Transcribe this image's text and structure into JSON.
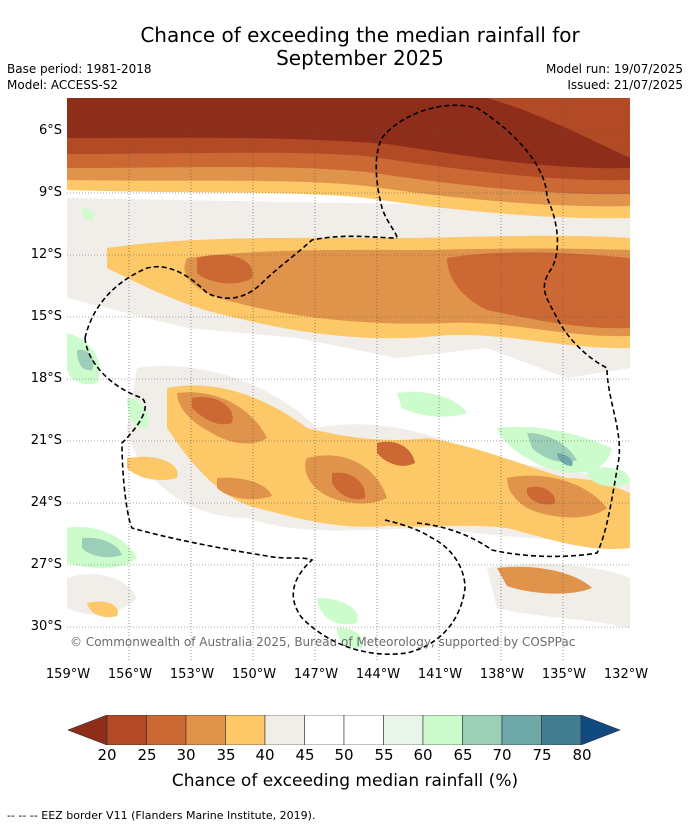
{
  "title_line1": "Chance of exceeding the median rainfall for",
  "title_line2": "September 2025",
  "base_period": "Base period: 1981-2018",
  "model": "Model: ACCESS-S2",
  "model_run": "Model run: 19/07/2025",
  "issued": "Issued: 21/07/2025",
  "lat_labels": [
    "6°S",
    "9°S",
    "12°S",
    "15°S",
    "18°S",
    "21°S",
    "24°S",
    "27°S",
    "30°S"
  ],
  "lon_labels": [
    "159°W",
    "156°W",
    "153°W",
    "150°W",
    "147°W",
    "144°W",
    "141°W",
    "138°W",
    "135°W",
    "132°W"
  ],
  "colorbar": {
    "ticks": [
      "20",
      "25",
      "30",
      "35",
      "40",
      "45",
      "50",
      "55",
      "60",
      "65",
      "70",
      "75",
      "80"
    ],
    "colors": [
      "#8e2e1a",
      "#b24a26",
      "#cc6834",
      "#e0944b",
      "#fdc868",
      "#f1ede8",
      "#ffffff",
      "#ffffff",
      "#e8f5e8",
      "#ccfccc",
      "#9ccfb7",
      "#6fa8a8",
      "#427d92",
      "#114a80"
    ],
    "title": "Chance of exceeding median rainfall (%)"
  },
  "copyright": "© Commonwealth of Australia 2025, Bureau of Meteorology, supported by COSPPac",
  "legend": "--  --  -- EEZ border V11 (Flanders Marine Institute, 2019)."
}
